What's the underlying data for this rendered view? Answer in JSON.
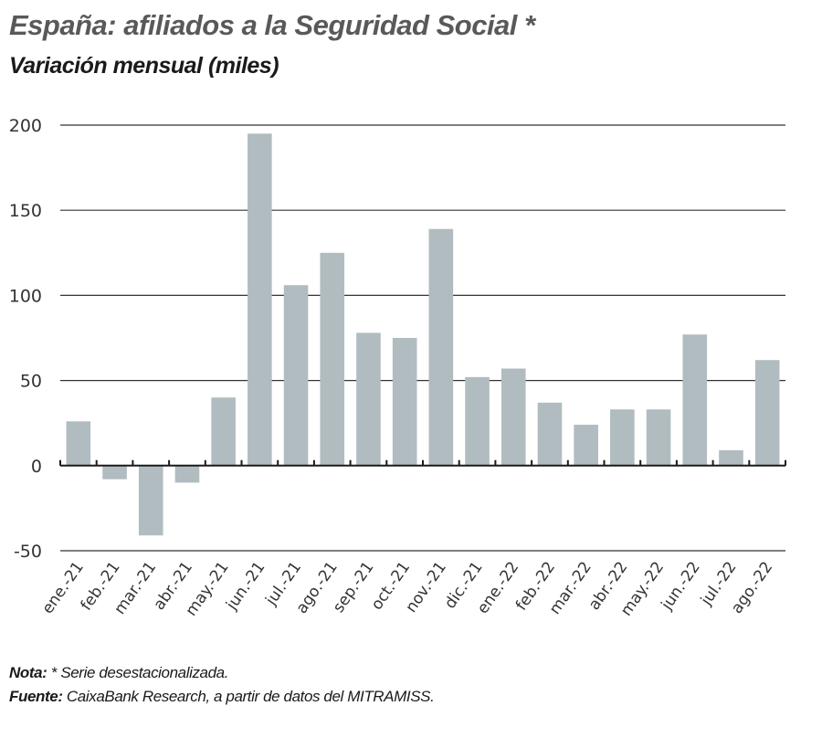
{
  "header": {
    "title": "España: afiliados a la Seguridad Social *",
    "subtitle": "Variación mensual (miles)"
  },
  "footer": {
    "note_label": "Nota:",
    "note_text": " * Serie desestacionalizada.",
    "source_label": "Fuente:",
    "source_text": " CaixaBank Research, a partir de datos del MITRAMISS."
  },
  "colors": {
    "bar": "#b1bcc0",
    "grid": "#333333",
    "axis": "#1a1a1a"
  },
  "chart_data": {
    "type": "bar",
    "title": "España: afiliados a la Seguridad Social *",
    "subtitle": "Variación mensual (miles)",
    "xlabel": "",
    "ylabel": "",
    "ylim": [
      -50,
      200
    ],
    "yticks": [
      200,
      150,
      100,
      50,
      0,
      -50
    ],
    "grid": true,
    "legend": "none",
    "categories": [
      "ene.-21",
      "feb.-21",
      "mar.-21",
      "abr.-21",
      "may.-21",
      "jun.-21",
      "jul.-21",
      "ago.-21",
      "sep.-21",
      "oct.-21",
      "nov.-21",
      "dic.-21",
      "ene.-22",
      "feb.-22",
      "mar.-22",
      "abr.-22",
      "may.-22",
      "jun.-22",
      "jul.-22",
      "ago.-22"
    ],
    "values": [
      26,
      -8,
      -41,
      -10,
      40,
      195,
      106,
      125,
      78,
      75,
      139,
      52,
      57,
      37,
      24,
      33,
      33,
      77,
      9,
      62
    ]
  }
}
